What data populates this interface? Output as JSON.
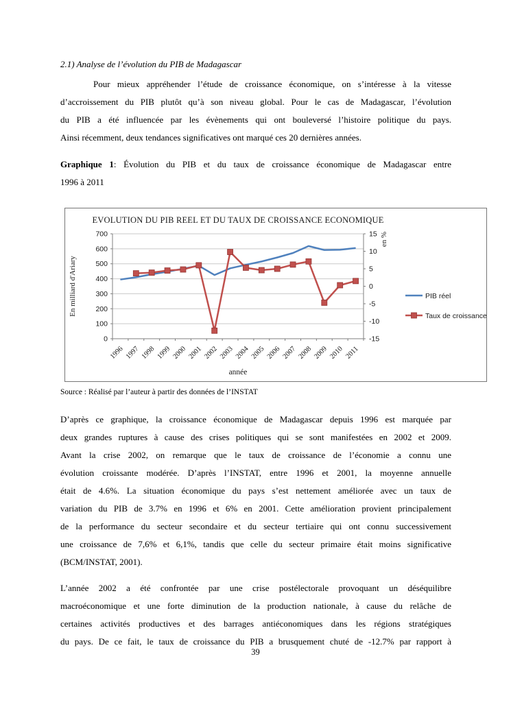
{
  "page": {
    "heading": "2.1) Analyse de l’évolution du PIB de Madagascar",
    "para1_lines": [
      "Pour mieux appréhender l’étude de croissance économique, on s’intéresse à la vitesse",
      "d’accroissement du PIB plutôt qu’à son niveau global. Pour le cas de Madagascar, l’évolution",
      "du PIB a été influencée par les évènements qui ont bouleversé l’histoire politique du pays.",
      "Ainsi récemment, deux tendances significatives ont marqué ces 20 dernières années."
    ],
    "caption": {
      "bold": "Graphique 1",
      "line1_rest": ": Évolution du PIB et du taux de croissance économique de Madagascar entre",
      "line2": "1996 à 2011"
    },
    "source": "Source : Réalisé par l’auteur à partir des données de l’INSTAT",
    "para2_lines": [
      "D’après ce graphique, la croissance économique de Madagascar depuis 1996 est marquée par",
      "deux grandes ruptures à cause des  crises politiques qui se sont manifestées en 2002 et 2009.",
      "Avant la crise 2002, on remarque que le taux de croissance de l’économie a connu une",
      "évolution croissante modérée. D’après l’INSTAT, entre 1996 et 2001, la moyenne annuelle",
      "était de 4.6%. La situation économique du pays s’est nettement améliorée avec un taux de",
      "variation du PIB de 3.7% en 1996 et 6% en 2001. Cette amélioration provient principalement",
      "de la performance du secteur secondaire et du secteur tertiaire qui ont connu successivement",
      "une croissance de 7,6% et 6,1%, tandis que celle du secteur primaire était moins significative",
      "(BCM/INSTAT, 2001)."
    ],
    "para3_lines": [
      "L’année 2002 a été confrontée par une crise postélectorale provoquant un déséquilibre",
      "macroéconomique et une forte diminution de la production nationale, à cause du relâche de",
      "certaines activités productives et des barrages antiéconomiques dans les régions stratégiques",
      "du pays. De ce fait, le taux de croissance du PIB a brusquement chuté de -12.7% par rapport à"
    ],
    "page_number": "39"
  },
  "chart_data": {
    "type": "line",
    "title": "EVOLUTION DU PIB REEL ET DU TAUX DE CROISSANCE ECONOMIQUE",
    "xlabel": "année",
    "ylabel_left": "En milliard d'Ariary",
    "ylabel_right": "en %",
    "categories": [
      "1996",
      "1997",
      "1998",
      "1999",
      "2000",
      "2001",
      "2002",
      "2003",
      "2004",
      "2005",
      "2006",
      "2007",
      "2008",
      "2009",
      "2010",
      "2011"
    ],
    "ylim_left": [
      0,
      700
    ],
    "ytick_step_left": 100,
    "ylim_right": [
      -15,
      15
    ],
    "ytick_step_right": 5,
    "grid": true,
    "legend_position": "right",
    "series": [
      {
        "name": "PIB réel",
        "axis": "left",
        "color": "#4F81BD",
        "marker": "none",
        "values": [
          395,
          410,
          430,
          447,
          467,
          487,
          425,
          470,
          493,
          515,
          542,
          572,
          618,
          592,
          594,
          605
        ]
      },
      {
        "name": "Taux de croissance",
        "axis": "right",
        "color": "#C0504D",
        "marker": "square",
        "values": [
          null,
          3.7,
          3.9,
          4.5,
          4.8,
          6.0,
          -12.7,
          9.8,
          5.3,
          4.6,
          5.0,
          6.2,
          7.1,
          -4.7,
          0.3,
          1.5
        ]
      }
    ]
  }
}
